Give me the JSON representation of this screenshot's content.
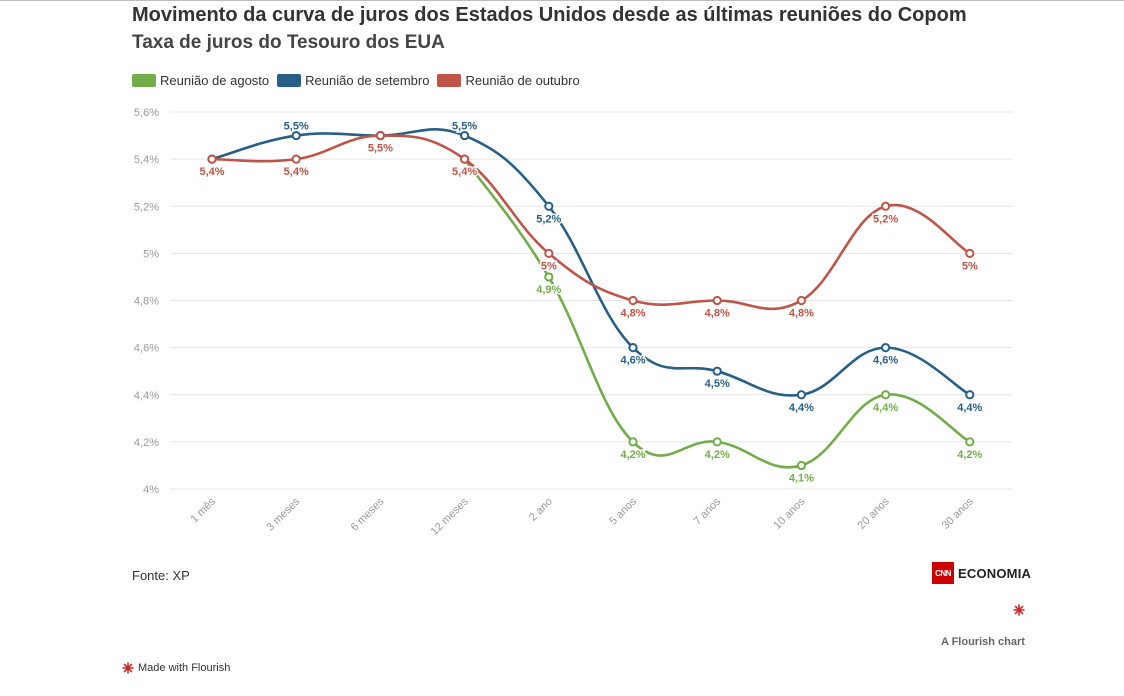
{
  "header": {
    "title": "Movimento da curva de juros dos Estados Unidos desde as últimas reuniões do Copom",
    "subtitle": "Taxa de juros do Tesouro dos EUA"
  },
  "footer": {
    "source": "Fonte: XP",
    "brand_logo": "CNN",
    "brand_name": "ECONOMIA",
    "flourish_chart": "A Flourish chart",
    "made_with": "Made with Flourish"
  },
  "colors": {
    "agosto": "#72ad4a",
    "setembro": "#285f87",
    "outubro": "#bf5549",
    "grid": "#e6e6e6",
    "axis_text": "#9a9a9a",
    "flourish_red": "#cc2b2b"
  },
  "chart_data": {
    "type": "line",
    "title": "Movimento da curva de juros dos Estados Unidos desde as últimas reuniões do Copom",
    "subtitle": "Taxa de juros do Tesouro dos EUA",
    "categories": [
      "1 mês",
      "3 meses",
      "6 meses",
      "12 meses",
      "2 ano",
      "5 anos",
      "7 anos",
      "10 anos",
      "20 anos",
      "30 anos"
    ],
    "ylim": [
      4,
      5.6
    ],
    "y_ticks": [
      4,
      4.2,
      4.4,
      4.6,
      4.8,
      5,
      5.2,
      5.4,
      5.6
    ],
    "y_tick_labels": [
      "4%",
      "4,2%",
      "4,4%",
      "4,6%",
      "4,8%",
      "5%",
      "5,2%",
      "5,4%",
      "5,6%"
    ],
    "grid": true,
    "legend_position": "top-left",
    "series": [
      {
        "name": "Reunião de agosto",
        "color_key": "agosto",
        "values": [
          null,
          null,
          null,
          5.4,
          4.9,
          4.2,
          4.2,
          4.1,
          4.4,
          4.2
        ],
        "labels": [
          null,
          null,
          null,
          null,
          "4,9%",
          "4,2%",
          "4,2%",
          "4,1%",
          "4,4%",
          "4,2%"
        ]
      },
      {
        "name": "Reunião de setembro",
        "color_key": "setembro",
        "values": [
          5.4,
          5.5,
          5.5,
          5.5,
          5.2,
          4.6,
          4.5,
          4.4,
          4.6,
          4.4
        ],
        "labels": [
          null,
          "5,5%",
          null,
          "5,5%",
          "5,2%",
          "4,6%",
          "4,5%",
          "4,4%",
          "4,6%",
          "4,4%"
        ]
      },
      {
        "name": "Reunião de outubro",
        "color_key": "outubro",
        "values": [
          5.4,
          5.4,
          5.5,
          5.4,
          5.0,
          4.8,
          4.8,
          4.8,
          5.2,
          5.0
        ],
        "labels": [
          "5,4%",
          "5,4%",
          "5,5%",
          "5,4%",
          "5%",
          "4,8%",
          "4,8%",
          "4,8%",
          "5,2%",
          "5%"
        ]
      }
    ]
  }
}
